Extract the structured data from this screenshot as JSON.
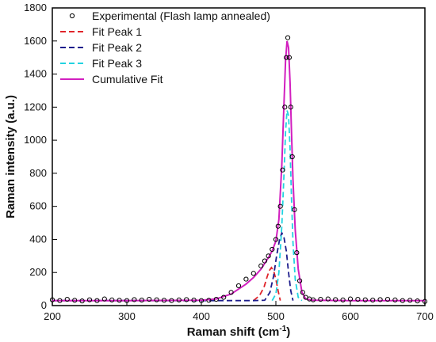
{
  "chart_data": {
    "type": "line",
    "xlabel": "Raman shift (cm",
    "xlabel_sup": "-1",
    "xlabel_end": ")",
    "ylabel": "Raman intensity (a.u.)",
    "xlim": [
      200,
      700
    ],
    "ylim": [
      0,
      1800
    ],
    "xticks": [
      200,
      300,
      400,
      500,
      600,
      700
    ],
    "yticks": [
      0,
      200,
      400,
      600,
      800,
      1000,
      1200,
      1400,
      1600,
      1800
    ],
    "grid": false,
    "legend_position": "top-left",
    "series": [
      {
        "name": "Experimental (Flash lamp annealed)",
        "style": "markers",
        "color": "#000000",
        "x": [
          200,
          210,
          220,
          230,
          240,
          250,
          260,
          270,
          280,
          290,
          300,
          310,
          320,
          330,
          340,
          350,
          360,
          370,
          380,
          390,
          400,
          410,
          420,
          430,
          440,
          450,
          460,
          470,
          480,
          485,
          490,
          495,
          500,
          503,
          506,
          509,
          512,
          514,
          516,
          518,
          520,
          522,
          525,
          528,
          532,
          536,
          540,
          545,
          550,
          560,
          570,
          580,
          590,
          600,
          610,
          620,
          630,
          640,
          650,
          660,
          670,
          680,
          690,
          700
        ],
        "y": [
          35,
          30,
          38,
          32,
          28,
          35,
          30,
          40,
          34,
          32,
          30,
          36,
          33,
          38,
          35,
          32,
          30,
          34,
          36,
          33,
          30,
          32,
          38,
          50,
          80,
          120,
          160,
          195,
          240,
          270,
          300,
          340,
          400,
          480,
          600,
          820,
          1200,
          1500,
          1620,
          1500,
          1200,
          900,
          580,
          320,
          150,
          80,
          50,
          40,
          35,
          38,
          40,
          36,
          34,
          40,
          38,
          35,
          33,
          36,
          38,
          34,
          30,
          32,
          28,
          25
        ]
      },
      {
        "name": "Fit Peak 1",
        "style": "dashed",
        "color": "#e0242a",
        "x": [
          470,
          478,
          484,
          488,
          491,
          494,
          497,
          500,
          503,
          506
        ],
        "y": [
          30,
          60,
          110,
          170,
          210,
          230,
          210,
          160,
          90,
          30
        ]
      },
      {
        "name": "Fit Peak 2",
        "style": "dashed",
        "color": "#1c1c8c",
        "x": [
          200,
          420,
          470,
          485,
          492,
          497,
          501,
          505,
          508,
          511,
          514,
          517,
          520,
          523
        ],
        "y": [
          30,
          30,
          30,
          32,
          80,
          180,
          300,
          400,
          440,
          410,
          330,
          200,
          90,
          30
        ]
      },
      {
        "name": "Fit Peak 3",
        "style": "dashed",
        "color": "#22d3e0",
        "x": [
          495,
          500,
          504,
          508,
          511,
          513,
          515,
          517,
          519,
          521,
          523,
          526,
          530,
          535
        ],
        "y": [
          30,
          70,
          200,
          480,
          800,
          1050,
          1180,
          1150,
          950,
          650,
          380,
          160,
          50,
          30
        ]
      },
      {
        "name": "Cumulative Fit",
        "style": "solid",
        "color": "#d21fbf",
        "x": [
          200,
          300,
          400,
          420,
          440,
          460,
          470,
          480,
          490,
          495,
          500,
          504,
          508,
          511,
          513,
          515,
          517,
          519,
          521,
          523,
          526,
          530,
          535,
          540,
          550,
          600,
          650,
          700
        ],
        "y": [
          30,
          30,
          32,
          40,
          70,
          130,
          170,
          220,
          290,
          330,
          390,
          520,
          850,
          1230,
          1480,
          1600,
          1560,
          1350,
          1050,
          760,
          460,
          220,
          80,
          40,
          32,
          30,
          30,
          30
        ]
      }
    ]
  }
}
